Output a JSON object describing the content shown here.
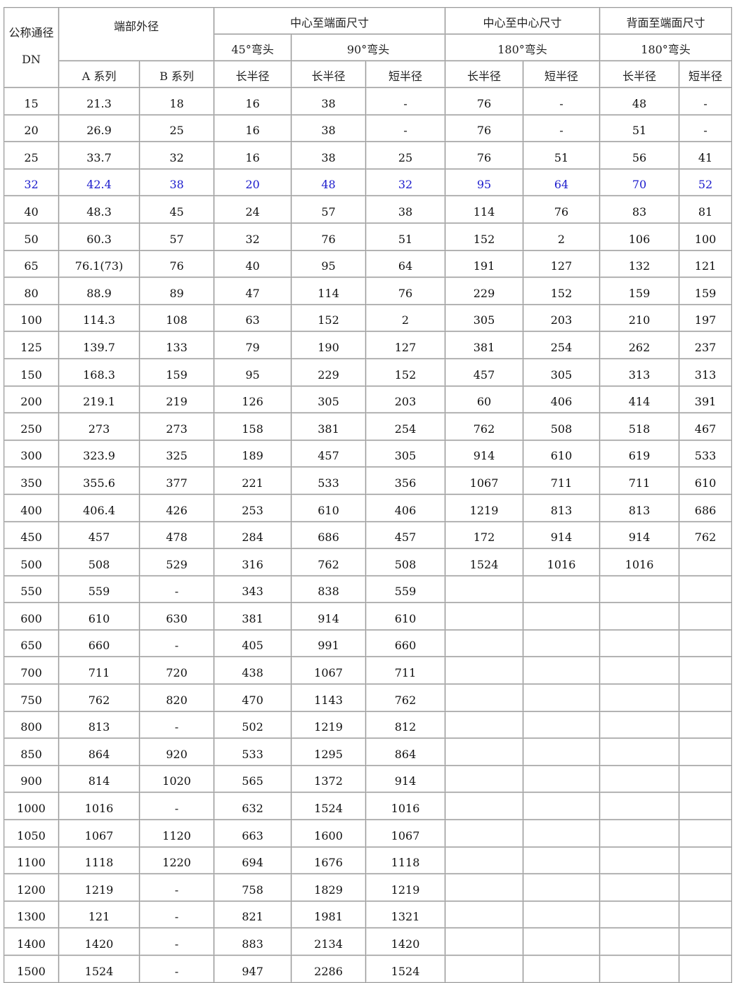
{
  "header": {
    "dn": "公称通径",
    "dn_unit": "DN",
    "od": "端部外径",
    "center_end": "中心至端面尺寸",
    "center_center": "中心至中心尺寸",
    "back_end": "背面至端面尺寸",
    "elbow45": "45°弯头",
    "elbow90": "90°弯头",
    "elbow180_a": "180°弯头",
    "elbow180_b": "180°弯头",
    "series_a": "A 系列",
    "series_b": "B 系列",
    "long_1": "长半径",
    "long_2": "长半径",
    "short_2": "短半径",
    "long_3": "长半径",
    "short_3": "短半径",
    "long_4": "长半径",
    "short_4": "短半径"
  },
  "highlight_color": "#1a1acc",
  "highlight_row": 3,
  "rows": [
    [
      "15",
      "21.3",
      "18",
      "16",
      "38",
      "-",
      "76",
      "-",
      "48",
      "-"
    ],
    [
      "20",
      "26.9",
      "25",
      "16",
      "38",
      "-",
      "76",
      "-",
      "51",
      "-"
    ],
    [
      "25",
      "33.7",
      "32",
      "16",
      "38",
      "25",
      "76",
      "51",
      "56",
      "41"
    ],
    [
      "32",
      "42.4",
      "38",
      "20",
      "48",
      "32",
      "95",
      "64",
      "70",
      "52"
    ],
    [
      "40",
      "48.3",
      "45",
      "24",
      "57",
      "38",
      "114",
      "76",
      "83",
      "81"
    ],
    [
      "50",
      "60.3",
      "57",
      "32",
      "76",
      "51",
      "152",
      "2",
      "106",
      "100"
    ],
    [
      "65",
      "76.1(73)",
      "76",
      "40",
      "95",
      "64",
      "191",
      "127",
      "132",
      "121"
    ],
    [
      "80",
      "88.9",
      "89",
      "47",
      "114",
      "76",
      "229",
      "152",
      "159",
      "159"
    ],
    [
      "100",
      "114.3",
      "108",
      "63",
      "152",
      "2",
      "305",
      "203",
      "210",
      "197"
    ],
    [
      "125",
      "139.7",
      "133",
      "79",
      "190",
      "127",
      "381",
      "254",
      "262",
      "237"
    ],
    [
      "150",
      "168.3",
      "159",
      "95",
      "229",
      "152",
      "457",
      "305",
      "313",
      "313"
    ],
    [
      "200",
      "219.1",
      "219",
      "126",
      "305",
      "203",
      "60",
      "406",
      "414",
      "391"
    ],
    [
      "250",
      "273",
      "273",
      "158",
      "381",
      "254",
      "762",
      "508",
      "518",
      "467"
    ],
    [
      "300",
      "323.9",
      "325",
      "189",
      "457",
      "305",
      "914",
      "610",
      "619",
      "533"
    ],
    [
      "350",
      "355.6",
      "377",
      "221",
      "533",
      "356",
      "1067",
      "711",
      "711",
      "610"
    ],
    [
      "400",
      "406.4",
      "426",
      "253",
      "610",
      "406",
      "1219",
      "813",
      "813",
      "686"
    ],
    [
      "450",
      "457",
      "478",
      "284",
      "686",
      "457",
      "172",
      "914",
      "914",
      "762"
    ],
    [
      "500",
      "508",
      "529",
      "316",
      "762",
      "508",
      "1524",
      "1016",
      "1016",
      ""
    ],
    [
      "550",
      "559",
      "-",
      "343",
      "838",
      "559",
      "",
      "",
      "",
      ""
    ],
    [
      "600",
      "610",
      "630",
      "381",
      "914",
      "610",
      "",
      "",
      "",
      ""
    ],
    [
      "650",
      "660",
      "-",
      "405",
      "991",
      "660",
      "",
      "",
      "",
      ""
    ],
    [
      "700",
      "711",
      "720",
      "438",
      "1067",
      "711",
      "",
      "",
      "",
      ""
    ],
    [
      "750",
      "762",
      "820",
      "470",
      "1143",
      "762",
      "",
      "",
      "",
      ""
    ],
    [
      "800",
      "813",
      "-",
      "502",
      "1219",
      "812",
      "",
      "",
      "",
      ""
    ],
    [
      "850",
      "864",
      "920",
      "533",
      "1295",
      "864",
      "",
      "",
      "",
      ""
    ],
    [
      "900",
      "814",
      "1020",
      "565",
      "1372",
      "914",
      "",
      "",
      "",
      ""
    ],
    [
      "1000",
      "1016",
      "-",
      "632",
      "1524",
      "1016",
      "",
      "",
      "",
      ""
    ],
    [
      "1050",
      "1067",
      "1120",
      "663",
      "1600",
      "1067",
      "",
      "",
      "",
      ""
    ],
    [
      "1100",
      "1118",
      "1220",
      "694",
      "1676",
      "1118",
      "",
      "",
      "",
      ""
    ],
    [
      "1200",
      "1219",
      "-",
      "758",
      "1829",
      "1219",
      "",
      "",
      "",
      ""
    ],
    [
      "1300",
      "121",
      "-",
      "821",
      "1981",
      "1321",
      "",
      "",
      "",
      ""
    ],
    [
      "1400",
      "1420",
      "-",
      "883",
      "2134",
      "1420",
      "",
      "",
      "",
      ""
    ],
    [
      "1500",
      "1524",
      "-",
      "947",
      "2286",
      "1524",
      "",
      "",
      "",
      ""
    ]
  ]
}
